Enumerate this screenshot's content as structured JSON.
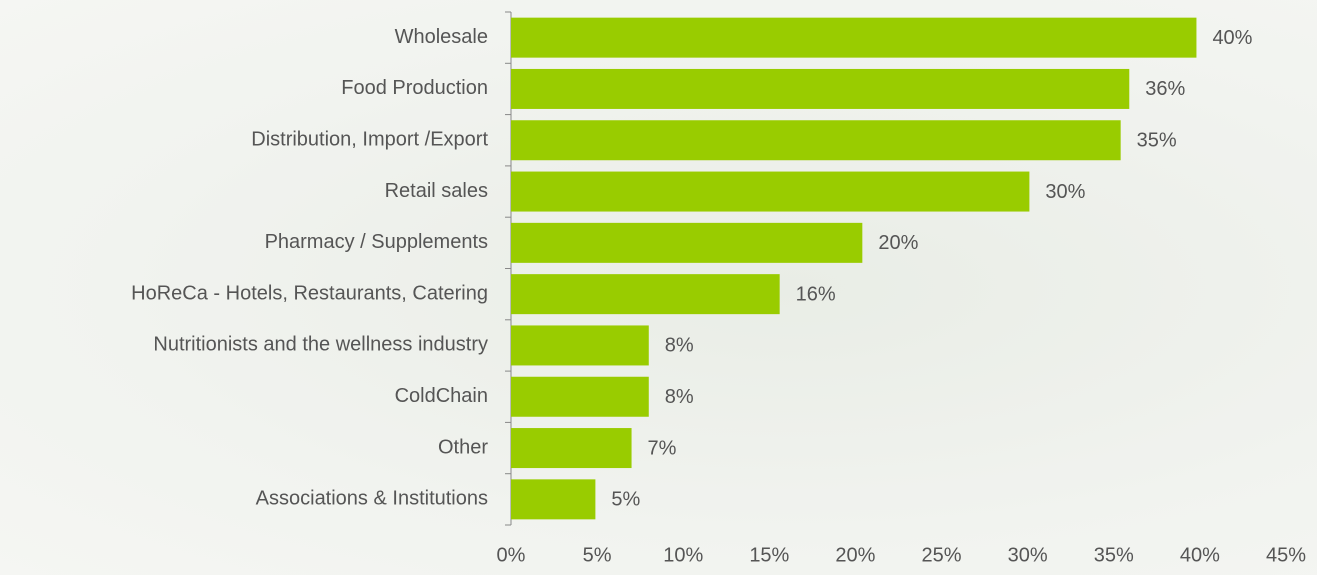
{
  "chart_data": {
    "type": "barh",
    "categories": [
      "Wholesale",
      "Food Production",
      "Distribution, Import /Export",
      "Retail sales",
      "Pharmacy / Supplements",
      "HoReCa - Hotels, Restaurants, Catering",
      "Nutritionists and the wellness industry",
      "ColdChain",
      "Other",
      "Associations & Institutions"
    ],
    "values": [
      39.8,
      35.9,
      35.4,
      30.1,
      20.4,
      15.6,
      8.0,
      8.0,
      7.0,
      4.9
    ],
    "value_labels": [
      "40%",
      "36%",
      "35%",
      "30%",
      "20%",
      "16%",
      "8%",
      "8%",
      "7%",
      "5%"
    ],
    "color": "#99cc00",
    "xlim": [
      0,
      45
    ],
    "xticks": [
      {
        "value": 0,
        "label": "0%"
      },
      {
        "value": 5,
        "label": "5%"
      },
      {
        "value": 10,
        "label": "10%"
      },
      {
        "value": 15,
        "label": "15%"
      },
      {
        "value": 20,
        "label": "20%"
      },
      {
        "value": 25,
        "label": "25%"
      },
      {
        "value": 30,
        "label": "30%"
      },
      {
        "value": 35,
        "label": "35%"
      },
      {
        "value": 40,
        "label": "40%"
      },
      {
        "value": 45,
        "label": "45%"
      }
    ]
  }
}
